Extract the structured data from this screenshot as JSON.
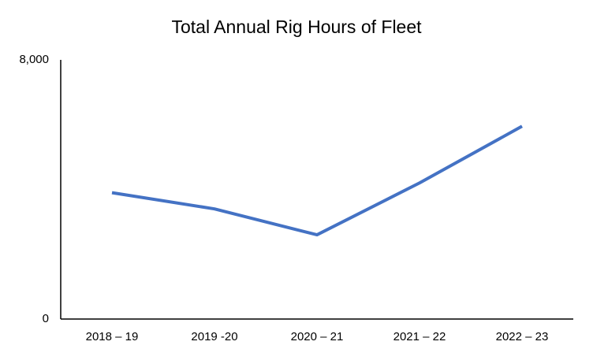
{
  "chart_data": {
    "type": "line",
    "title": "Total Annual Rig Hours of Fleet",
    "categories": [
      "2018 – 19",
      "2019 -20",
      "2020 – 21",
      "2021 – 22",
      "2022 – 23"
    ],
    "series": [
      {
        "name": "Rig Hours",
        "color": "#4472c4",
        "values": [
          3900,
          3400,
          2600,
          4200,
          5950
        ]
      }
    ],
    "ylim": [
      0,
      8000
    ],
    "yticks": [
      0,
      {
        "value": 8000,
        "label": "8,000"
      }
    ],
    "grid": false
  }
}
